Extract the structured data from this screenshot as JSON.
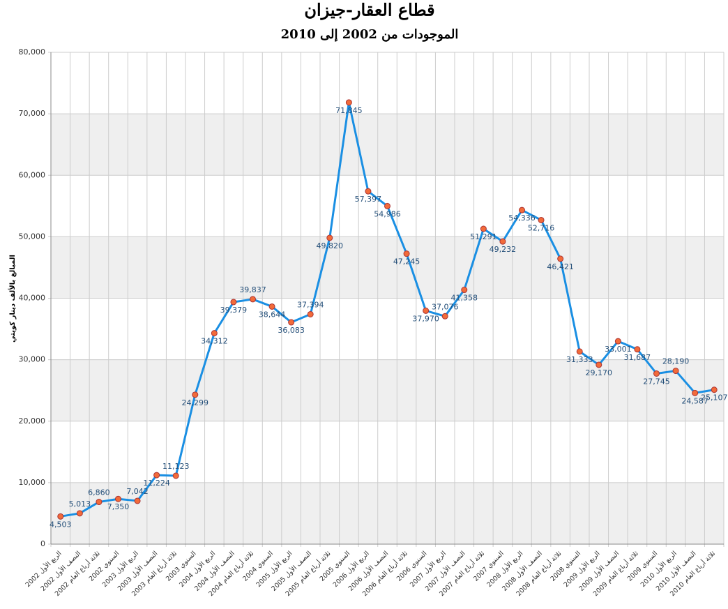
{
  "chart_data": {
    "type": "line",
    "title": "قطاع العقار-جيزان",
    "subtitle": "الموجودات من 2002 إلى 2010",
    "y_label": "المبالغ بالألف دينار كويتي",
    "categories": [
      "الربع الأول 2002",
      "النصف الأول 2002",
      "ثلاثة أرباع العام 2002",
      "السنوي 2002",
      "الربع الأول 2003",
      "النصف الأول 2003",
      "ثلاثة أرباع العام 2003",
      "السنوي 2003",
      "الربع الأول 2004",
      "النصف الأول 2004",
      "ثلاثة أرباع العام 2004",
      "السنوي 2004",
      "الربع الأول 2005",
      "النصف الأول 2005",
      "ثلاثة أرباع العام 2005",
      "السنوي 2005",
      "الربع الأول 2006",
      "النصف الأول 2006",
      "ثلاثة أرباع العام 2006",
      "السنوي 2006",
      "الربع الأول 2007",
      "النصف الأول 2007",
      "ثلاثة أرباع العام 2007",
      "السنوي 2007",
      "الربع الأول 2008",
      "النصف الأول 2008",
      "ثلاثة أرباع العام 2008",
      "السنوي 2008",
      "الربع الأول 2009",
      "النصف الأول 2009",
      "ثلاثة أرباع العام 2009",
      "السنوي 2009",
      "الربع الأول 2010",
      "النصف الأول 2010",
      "ثلاثة أرباع العام 2010"
    ],
    "series": [
      {
        "color": "#1a8fe3",
        "marker_color": "#f26b3a",
        "values": [
          4503,
          5013,
          6860,
          7350,
          7042,
          11224,
          11123,
          24299,
          34312,
          39379,
          39837,
          38644,
          36083,
          37394,
          49820,
          71845,
          57397,
          54986,
          47245,
          37970,
          37076,
          41358,
          51291,
          49232,
          54336,
          52716,
          46421,
          31333,
          29170,
          33001,
          31687,
          27745,
          28190,
          24587,
          25107
        ],
        "value_labels": [
          "4,503",
          "5,013",
          "6,860",
          "7,350",
          "7,042",
          "11,224",
          "11,123",
          "24,299",
          "34,312",
          "39,379",
          "39,837",
          "38,644",
          "36,083",
          "37,394",
          "49,820",
          "71,845",
          "57,397",
          "54,986",
          "47,245",
          "37,970",
          "37,076",
          "41,358",
          "51,291",
          "49,232",
          "54,336",
          "52,716",
          "46,421",
          "31,333",
          "29,170",
          "33,001",
          "31,687",
          "27,745",
          "28,190",
          "24,587",
          "25,107"
        ]
      }
    ],
    "ylim": [
      0,
      80000
    ],
    "yticks": [
      0,
      {
        "value": 10000,
        "label": "10,000"
      },
      {
        "value": 20000,
        "label": "20,000"
      },
      {
        "value": 30000,
        "label": "30,000"
      },
      {
        "value": 40000,
        "label": "40,000"
      },
      {
        "value": 50000,
        "label": "50,000"
      },
      {
        "value": 60000,
        "label": "60,000"
      },
      {
        "value": 70000,
        "label": "70,000"
      },
      {
        "value": 80000,
        "label": "80,000"
      }
    ],
    "grid": true
  }
}
